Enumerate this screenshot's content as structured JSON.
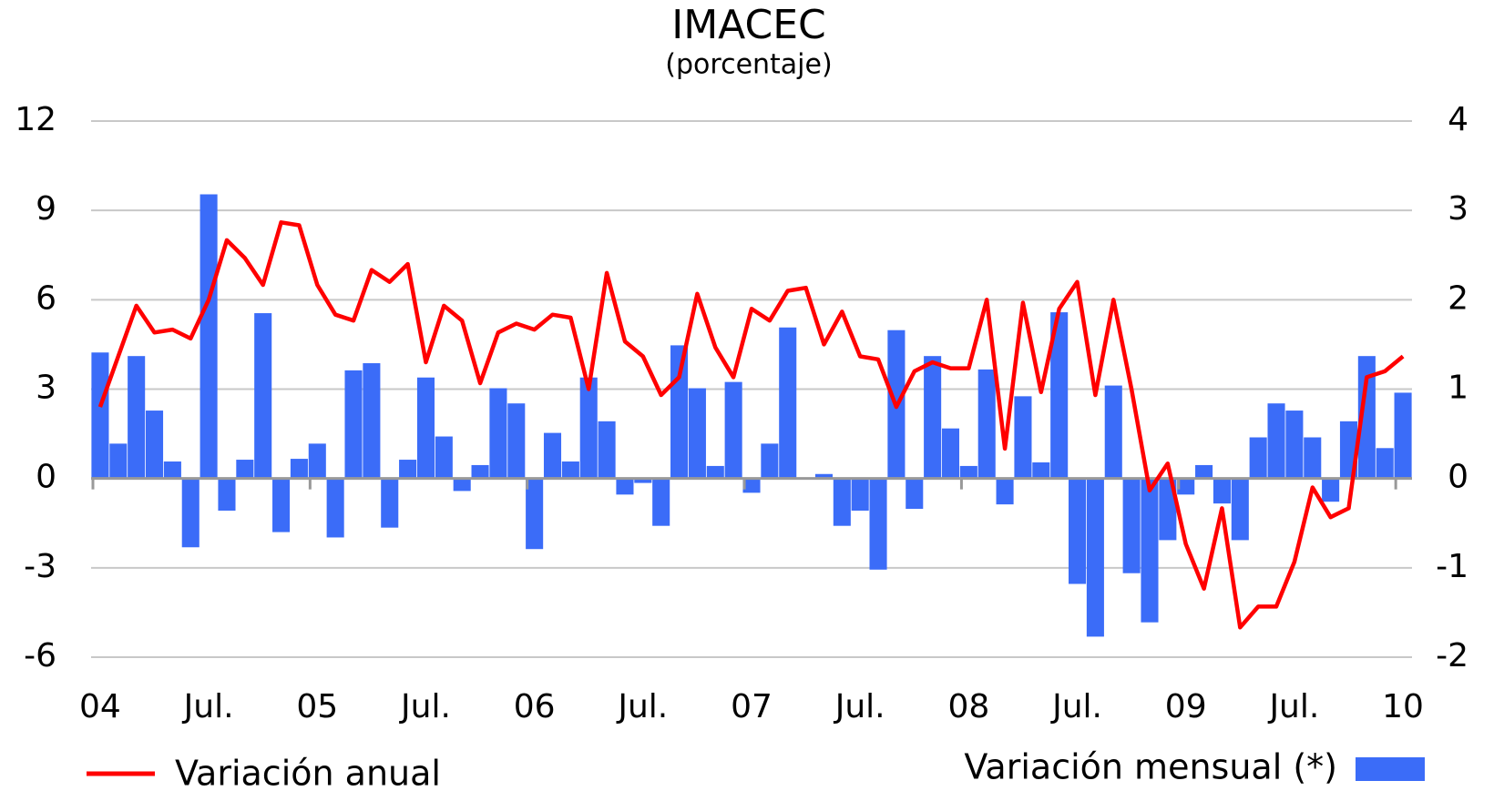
{
  "chart_data": {
    "type": "bar-line",
    "title": "IMACEC",
    "subtitle": "(porcentaje)",
    "categories": [
      "04",
      null,
      null,
      null,
      null,
      null,
      "Jul.",
      null,
      null,
      null,
      null,
      null,
      "05",
      null,
      null,
      null,
      null,
      null,
      "Jul.",
      null,
      null,
      null,
      null,
      null,
      "06",
      null,
      null,
      null,
      null,
      null,
      "Jul.",
      null,
      null,
      null,
      null,
      null,
      "07",
      null,
      null,
      null,
      null,
      null,
      "Jul.",
      null,
      null,
      null,
      null,
      null,
      "08",
      null,
      null,
      null,
      null,
      null,
      "Jul.",
      null,
      null,
      null,
      null,
      null,
      "09",
      null,
      null,
      null,
      null,
      null,
      "Jul.",
      null,
      null,
      null,
      null,
      null,
      "10"
    ],
    "ylim": [
      -6,
      12
    ],
    "yticks": [
      -6,
      -3,
      0,
      3,
      6,
      9,
      12
    ],
    "y2lim": [
      -2,
      4
    ],
    "y2ticks": [
      -2,
      -1,
      0,
      1,
      2,
      3,
      4
    ],
    "grid": true,
    "series": [
      {
        "name": "Variación anual",
        "type": "line",
        "color": "#ff0000",
        "axis": "y",
        "values": [
          2.4,
          4.1,
          5.8,
          4.9,
          5.0,
          4.7,
          6.0,
          8.0,
          7.4,
          6.5,
          8.6,
          8.5,
          6.5,
          5.5,
          5.3,
          7.0,
          6.6,
          7.2,
          3.9,
          5.8,
          5.3,
          3.2,
          4.9,
          5.2,
          5.0,
          5.5,
          5.4,
          3.0,
          6.9,
          4.6,
          4.1,
          2.8,
          3.4,
          6.2,
          4.4,
          3.4,
          5.7,
          5.3,
          6.3,
          6.4,
          4.5,
          5.6,
          4.1,
          4.0,
          2.4,
          3.6,
          3.9,
          3.7,
          3.7,
          6.0,
          1.0,
          5.9,
          2.9,
          5.7,
          6.6,
          2.8,
          6.0,
          3.0,
          -0.4,
          0.5,
          -2.2,
          -3.7,
          -1.0,
          -5.0,
          -4.3,
          -4.3,
          -2.8,
          -0.3,
          -1.3,
          -1.0,
          3.4,
          3.6,
          4.1
        ]
      },
      {
        "name": "Variación mensual (*)",
        "type": "bar",
        "color": "#3b6cf8",
        "axis": "y2",
        "values": [
          1.41,
          0.39,
          1.37,
          0.76,
          0.19,
          -0.77,
          3.18,
          -0.36,
          0.21,
          1.85,
          -0.6,
          0.22,
          0.39,
          -0.66,
          1.21,
          1.29,
          -0.55,
          0.21,
          1.13,
          0.47,
          -0.14,
          0.15,
          1.01,
          0.84,
          -0.79,
          0.51,
          0.19,
          1.13,
          0.64,
          -0.18,
          -0.05,
          -0.53,
          1.49,
          1.01,
          0.14,
          1.08,
          -0.16,
          0.39,
          1.69,
          0,
          0.05,
          -0.53,
          -0.36,
          -1.02,
          1.66,
          -0.34,
          1.37,
          0.56,
          0.14,
          1.22,
          -0.29,
          0.92,
          0.18,
          1.86,
          -1.18,
          -1.77,
          1.04,
          -1.06,
          -1.61,
          -0.69,
          -0.18,
          0.15,
          -0.28,
          -0.69,
          0.46,
          0.84,
          0.76,
          0.46,
          -0.26,
          0.64,
          1.37,
          0.34,
          0.96
        ]
      }
    ]
  }
}
